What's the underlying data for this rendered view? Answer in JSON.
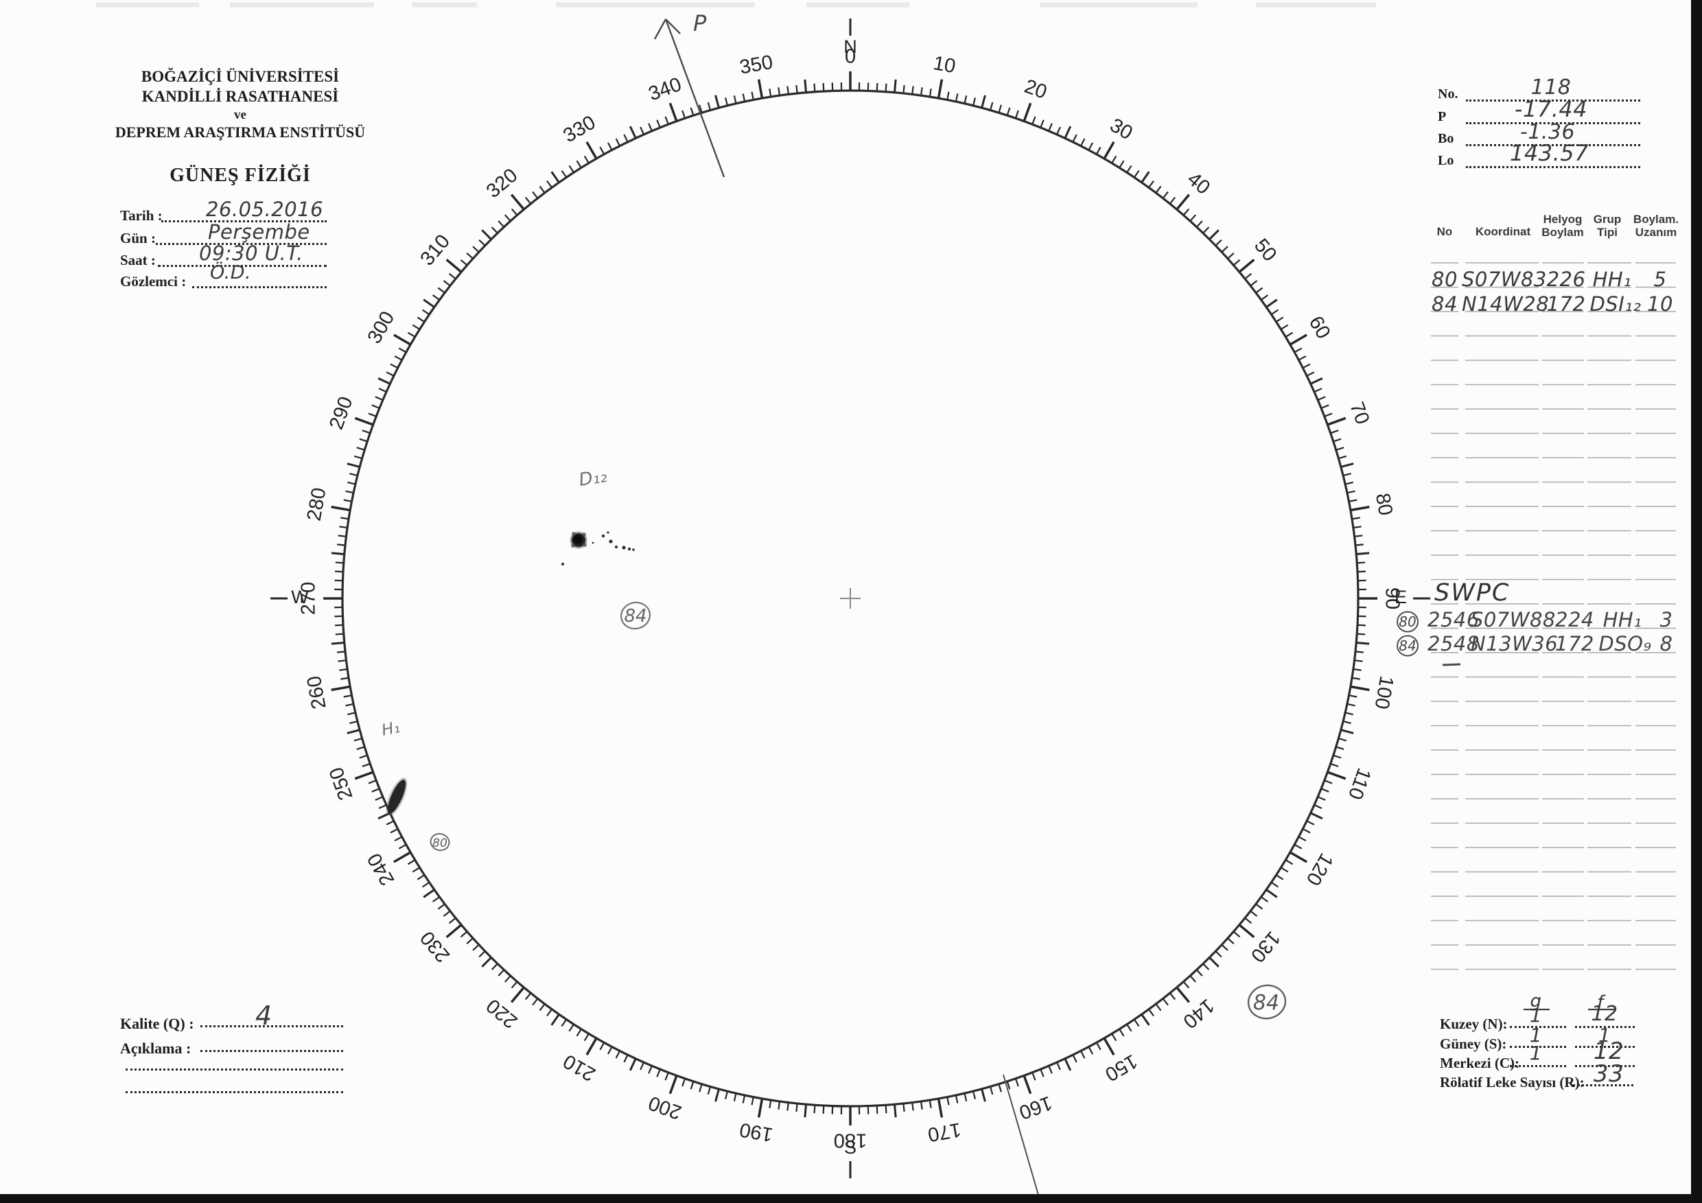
{
  "form": {
    "institution_line1": "BOĞAZİÇİ ÜNİVERSİTESİ",
    "institution_line2": "KANDİLLİ RASATHANESİ",
    "institution_line3": "ve",
    "institution_line4": "DEPREM ARAŞTIRMA ENSTİTÜSÜ",
    "title": "GÜNEŞ FİZİĞİ"
  },
  "observation": {
    "tarih_label": "Tarih :",
    "tarih": "26.05.2016",
    "gun_label": "Gün :",
    "gun": "Perşembe",
    "saat_label": "Saat :",
    "saat": "09:30 U.T.",
    "gozlemci_label": "Gözlemci :",
    "gozlemci": "Ö.D."
  },
  "ephemeris": {
    "no_label": "No.",
    "no": "118",
    "p_label": "P",
    "p": "-17.44",
    "bo_label": "Bo",
    "bo": "-1.36",
    "lo_label": "Lo",
    "lo": "143.57"
  },
  "group_table": {
    "headers": {
      "no": "No",
      "koordinat": "Koordinat",
      "helyog": "Helyog Boylam",
      "grup": "Grup Tipi",
      "uzanim": "Boylam. Uzanım"
    },
    "blank_rows": 30,
    "rows": [
      {
        "no": "80",
        "koordinat": "S07W83",
        "helyog": "226",
        "grup": "HH₁",
        "uzanim": "5"
      },
      {
        "no": "84",
        "koordinat": "N14W28",
        "helyog": "172",
        "grup": "DSI₁₂",
        "uzanim": "10"
      }
    ]
  },
  "swpc": {
    "label": "SWPC",
    "rows": [
      {
        "circled": "80",
        "no": "2546",
        "koordinat": "S07W88",
        "helyog": "224",
        "grup": "HH₁",
        "uzanim": "3"
      },
      {
        "circled": "84",
        "no": "2548",
        "koordinat": "N13W36",
        "helyog": "172",
        "grup": "DSO₉",
        "uzanim": "8"
      }
    ]
  },
  "summary": {
    "col_g": "g",
    "col_f": "f",
    "kuzey_label": "Kuzey (N):",
    "kuzey_g": "1",
    "kuzey_f": "12",
    "guney_label": "Güney (S):",
    "guney_g": "1",
    "guney_f": "1",
    "merkezi_label": "Merkezi (C):",
    "merkezi_g": "1",
    "merkezi_f": "12",
    "rolatif_label": "Rölatif Leke Sayısı (R):",
    "rolatif": "33"
  },
  "quality": {
    "kalite_label": "Kalite (Q) :",
    "kalite": "4",
    "aciklama_label": "Açıklama :"
  },
  "dial": {
    "compass": {
      "n": "N",
      "e": "E",
      "s": "S",
      "w": "W"
    },
    "degree_labels": [
      "0",
      "10",
      "20",
      "30",
      "40",
      "50",
      "60",
      "70",
      "80",
      "90",
      "100",
      "110",
      "120",
      "130",
      "140",
      "150",
      "160",
      "170",
      "180",
      "190",
      "200",
      "210",
      "220",
      "230",
      "240",
      "250",
      "260",
      "270",
      "280",
      "290",
      "300",
      "310",
      "320",
      "330",
      "340",
      "350"
    ]
  },
  "annotations": {
    "p_arrow": "P",
    "group_d_label": "D₁₂",
    "group_h_label": "H₁",
    "circled_84_inner": "84",
    "circled_80_inner": "80",
    "circled_84_outer": "84"
  }
}
